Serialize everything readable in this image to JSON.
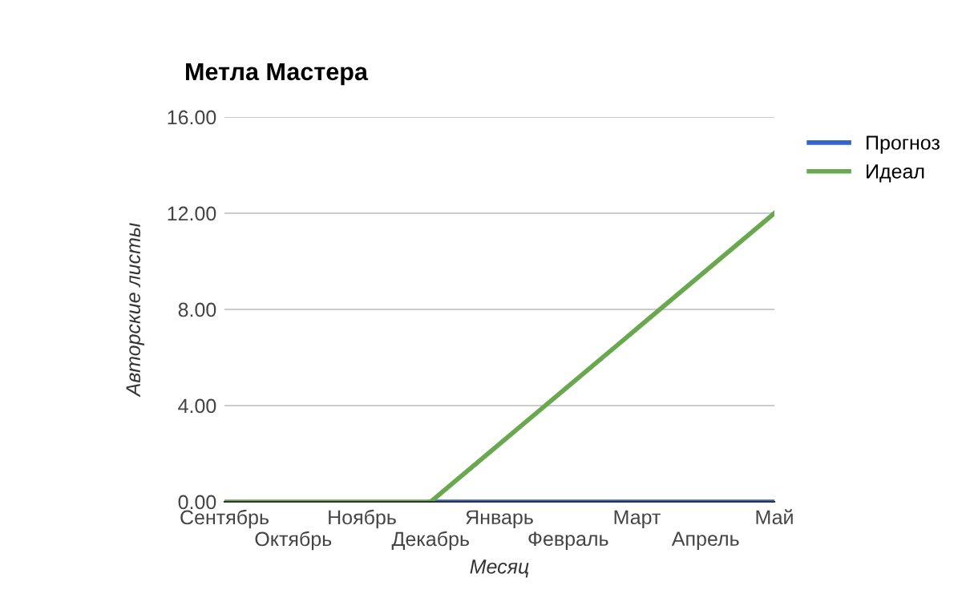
{
  "chart_data": {
    "type": "line",
    "title": "Метла Мастера",
    "xlabel": "Месяц",
    "ylabel": "Авторские листы",
    "categories": [
      "Сентябрь",
      "Октябрь",
      "Ноябрь",
      "Декабрь",
      "Январь",
      "Февраль",
      "Март",
      "Апрель",
      "Май"
    ],
    "series": [
      {
        "name": "Прогноз",
        "color": "#3366cc",
        "values": [
          null,
          null,
          null,
          0,
          0,
          0,
          0,
          0,
          0
        ]
      },
      {
        "name": "Идеал",
        "color": "#6aa84f",
        "values": [
          0,
          0,
          0,
          0,
          2.4,
          4.8,
          7.2,
          9.6,
          12
        ]
      }
    ],
    "ylim": [
      0,
      16
    ],
    "yticks": [
      {
        "value": 0,
        "label": "0.00"
      },
      {
        "value": 4,
        "label": "4.00"
      },
      {
        "value": 8,
        "label": "8.00"
      },
      {
        "value": 12,
        "label": "12.00"
      },
      {
        "value": 16,
        "label": "16.00"
      }
    ],
    "grid": "y",
    "legend": "top right",
    "marker": "none",
    "line_style": "solid"
  }
}
